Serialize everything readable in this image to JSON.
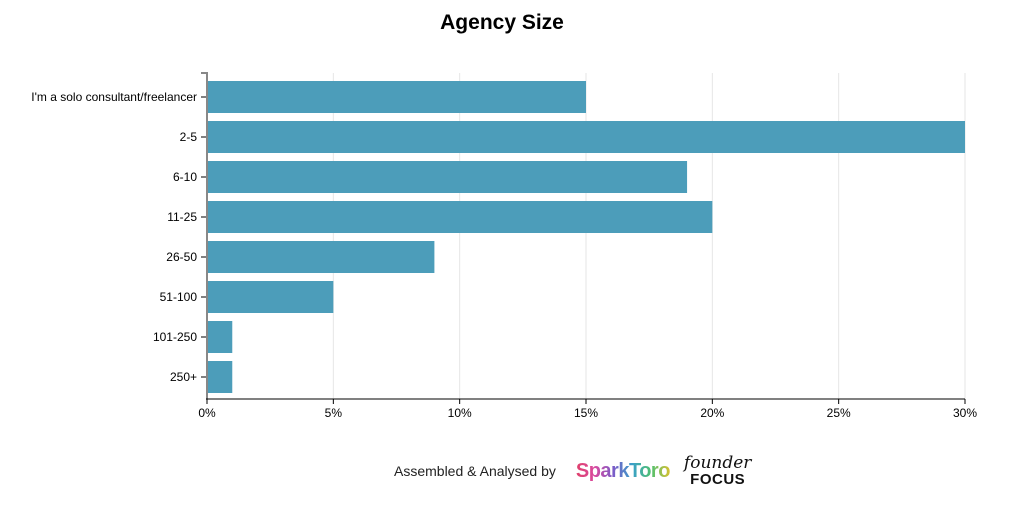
{
  "chart_data": {
    "type": "bar",
    "orientation": "horizontal",
    "title": "Agency Size",
    "categories": [
      "I'm a solo consultant/freelancer",
      "2-5",
      "6-10",
      "11-25",
      "26-50",
      "51-100",
      "101-250",
      "250+"
    ],
    "values": [
      15,
      30,
      19,
      20,
      9,
      5,
      1,
      1
    ],
    "xlim": [
      0,
      30
    ],
    "xticks": [
      0,
      5,
      10,
      15,
      20,
      25,
      30
    ],
    "xtick_labels": [
      "0%",
      "5%",
      "10%",
      "15%",
      "20%",
      "25%",
      "30%"
    ],
    "xlabel": "",
    "ylabel": "",
    "grid": true,
    "bar_color": "#4c9dba"
  },
  "footer": {
    "assembled": "Assembled & Analysed by",
    "logo1": "SparkToro",
    "logo2_top": "founder",
    "logo2_bottom": "FOCUS"
  }
}
